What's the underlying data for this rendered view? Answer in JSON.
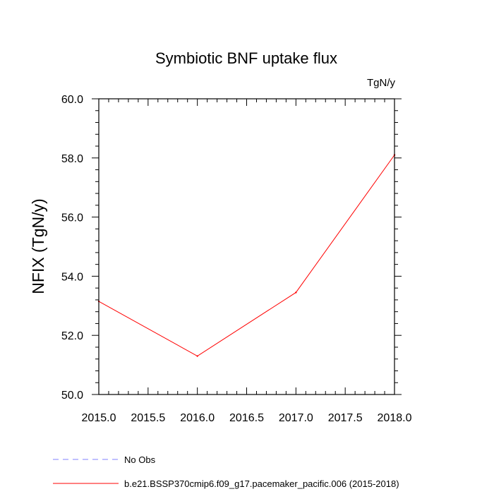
{
  "chart_data": {
    "type": "line",
    "title": "Symbiotic BNF uptake flux",
    "units_label": "TgN/y",
    "xlabel": "",
    "ylabel": "NFIX  (TgN/y)",
    "xlim": [
      2015.0,
      2018.0
    ],
    "ylim": [
      50.0,
      60.0
    ],
    "x_ticks": [
      "2015.0",
      "2015.5",
      "2016.0",
      "2016.5",
      "2017.0",
      "2017.5",
      "2018.0"
    ],
    "y_ticks": [
      "50.0",
      "52.0",
      "54.0",
      "56.0",
      "58.0",
      "60.0"
    ],
    "grid": false,
    "legend_position": "bottom-left",
    "series": [
      {
        "name": "b.e21.BSSP370cmip6.f09_g17.pacemaker_pacific.006 (2015-2018)",
        "color": "#ff0000",
        "style": "solid",
        "x": [
          2015,
          2016,
          2017,
          2018
        ],
        "y": [
          53.15,
          51.3,
          53.45,
          58.1
        ]
      }
    ],
    "legend": [
      {
        "label": "No Obs",
        "color": "#8080ff",
        "style": "dashed"
      },
      {
        "label": "b.e21.BSSP370cmip6.f09_g17.pacemaker_pacific.006 (2015-2018)",
        "color": "#ff0000",
        "style": "solid"
      }
    ]
  }
}
